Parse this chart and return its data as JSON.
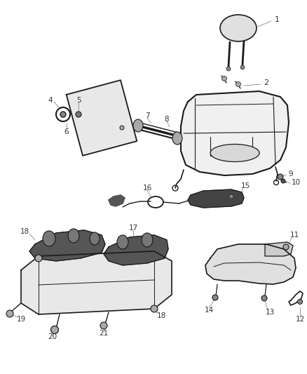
{
  "bg_color": "#ffffff",
  "figsize": [
    4.38,
    5.33
  ],
  "dpi": 100,
  "dark": "#1a1a1a",
  "gray": "#888888",
  "light_gray": "#cccccc",
  "mid_gray": "#888888"
}
